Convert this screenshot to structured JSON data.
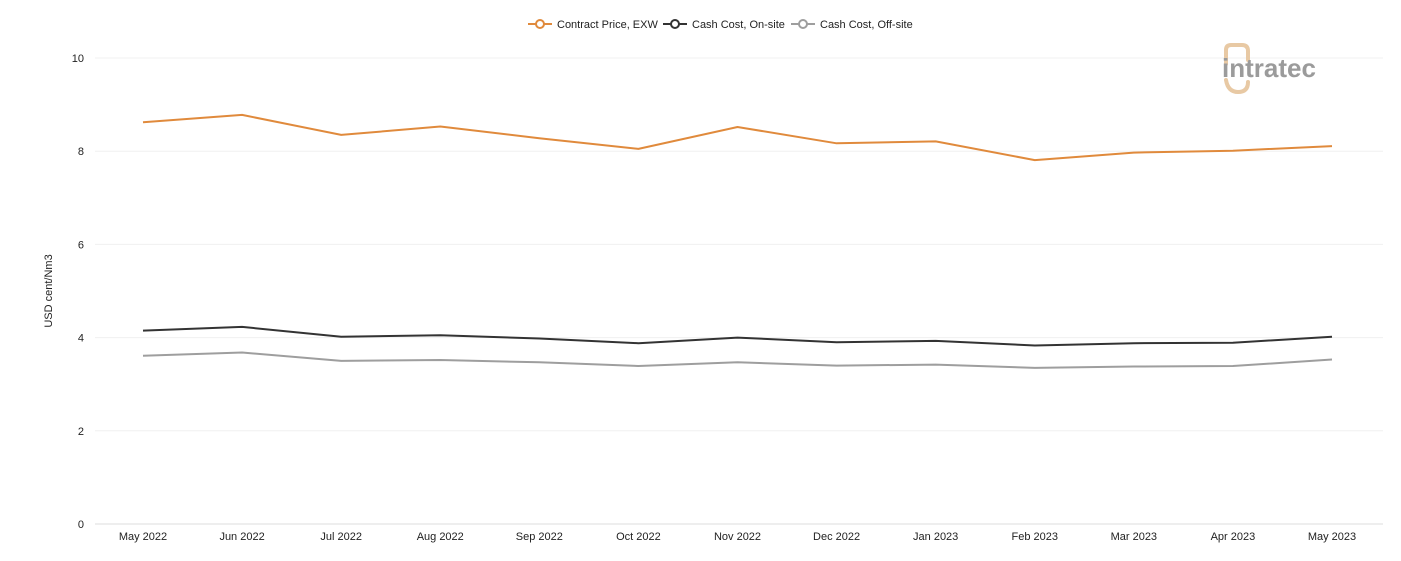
{
  "chart_data": {
    "type": "line",
    "ylabel": "USD cent/Nm3",
    "xlabel": "",
    "ylim": [
      0,
      10
    ],
    "yticks": [
      0,
      2,
      4,
      6,
      8,
      10
    ],
    "grid": true,
    "legend_position": "top-center",
    "categories": [
      "May 2022",
      "Jun 2022",
      "Jul 2022",
      "Aug 2022",
      "Sep 2022",
      "Oct 2022",
      "Nov 2022",
      "Dec 2022",
      "Jan 2023",
      "Feb 2023",
      "Mar 2023",
      "Apr 2023",
      "May 2023"
    ],
    "series": [
      {
        "name": "Contract Price, EXW",
        "color": "#e08a3c",
        "values": [
          8.62,
          8.78,
          8.35,
          8.53,
          8.28,
          8.05,
          8.52,
          8.17,
          8.21,
          7.81,
          7.97,
          8.01,
          8.11
        ]
      },
      {
        "name": "Cash Cost, On-site",
        "color": "#333333",
        "values": [
          4.15,
          4.23,
          4.02,
          4.05,
          3.98,
          3.88,
          4.0,
          3.9,
          3.93,
          3.83,
          3.88,
          3.89,
          4.02
        ]
      },
      {
        "name": "Cash Cost, Off-site",
        "color": "#9e9e9e",
        "values": [
          3.61,
          3.68,
          3.5,
          3.52,
          3.47,
          3.39,
          3.47,
          3.4,
          3.42,
          3.35,
          3.38,
          3.39,
          3.53
        ]
      }
    ]
  },
  "logo": {
    "text": "intratec",
    "colors": {
      "text": "#9b9b9b",
      "accent": "#e8c9a4"
    }
  }
}
